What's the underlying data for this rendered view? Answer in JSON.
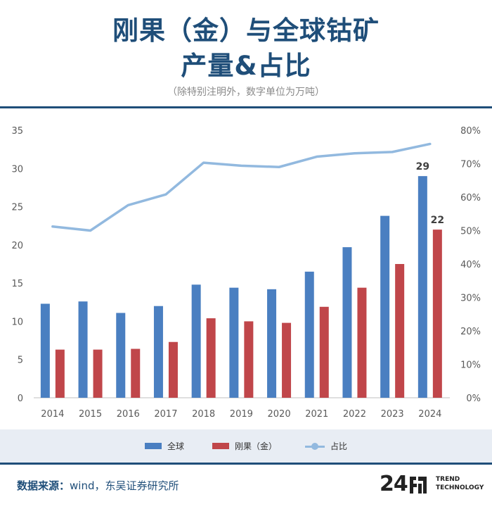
{
  "header": {
    "title_line1": "刚果（金）与全球钴矿",
    "title_line2": "产量&占比",
    "subtitle": "（除特别注明外，数字单位为万吨）"
  },
  "chart_data": {
    "type": "bar",
    "categories": [
      "2014",
      "2015",
      "2016",
      "2017",
      "2018",
      "2019",
      "2020",
      "2021",
      "2022",
      "2023",
      "2024"
    ],
    "series": [
      {
        "name": "全球",
        "kind": "bar",
        "axis": "left",
        "color": "#4a7fc1",
        "values": [
          12.3,
          12.6,
          11.1,
          12.0,
          14.8,
          14.4,
          14.2,
          16.5,
          19.7,
          23.8,
          29
        ]
      },
      {
        "name": "刚果（金）",
        "kind": "bar",
        "axis": "left",
        "color": "#c0464a",
        "values": [
          6.3,
          6.3,
          6.4,
          7.3,
          10.4,
          10.0,
          9.8,
          11.9,
          14.4,
          17.5,
          22
        ]
      },
      {
        "name": "占比",
        "kind": "line",
        "axis": "right",
        "color": "#92b9df",
        "values": [
          51.2,
          50.0,
          57.6,
          60.8,
          70.3,
          69.4,
          69.0,
          72.1,
          73.1,
          73.5,
          75.9
        ]
      }
    ],
    "y_left": {
      "min": 0,
      "max": 35,
      "ticks": [
        "0",
        "5",
        "10",
        "15",
        "20",
        "25",
        "30",
        "35"
      ]
    },
    "y_right": {
      "min": 0,
      "max": 80,
      "ticks": [
        "0%",
        "10%",
        "20%",
        "30%",
        "40%",
        "50%",
        "60%",
        "70%",
        "80%"
      ]
    },
    "data_labels": [
      {
        "series": 0,
        "index": 10,
        "text": "29"
      },
      {
        "series": 1,
        "index": 10,
        "text": "22"
      }
    ],
    "grid": false,
    "legend_position": "bottom"
  },
  "legend": {
    "items": [
      {
        "label": "全球",
        "color": "#4a7fc1"
      },
      {
        "label": "刚果（金）",
        "color": "#c0464a"
      },
      {
        "label": "占比",
        "color": "#92b9df"
      }
    ]
  },
  "footer": {
    "source_label": "数据来源：",
    "source_text": "wind，东吴证券研究所",
    "logo_number": "24",
    "logo_line1": "TREND",
    "logo_line2": "TECHNOLOGY"
  }
}
